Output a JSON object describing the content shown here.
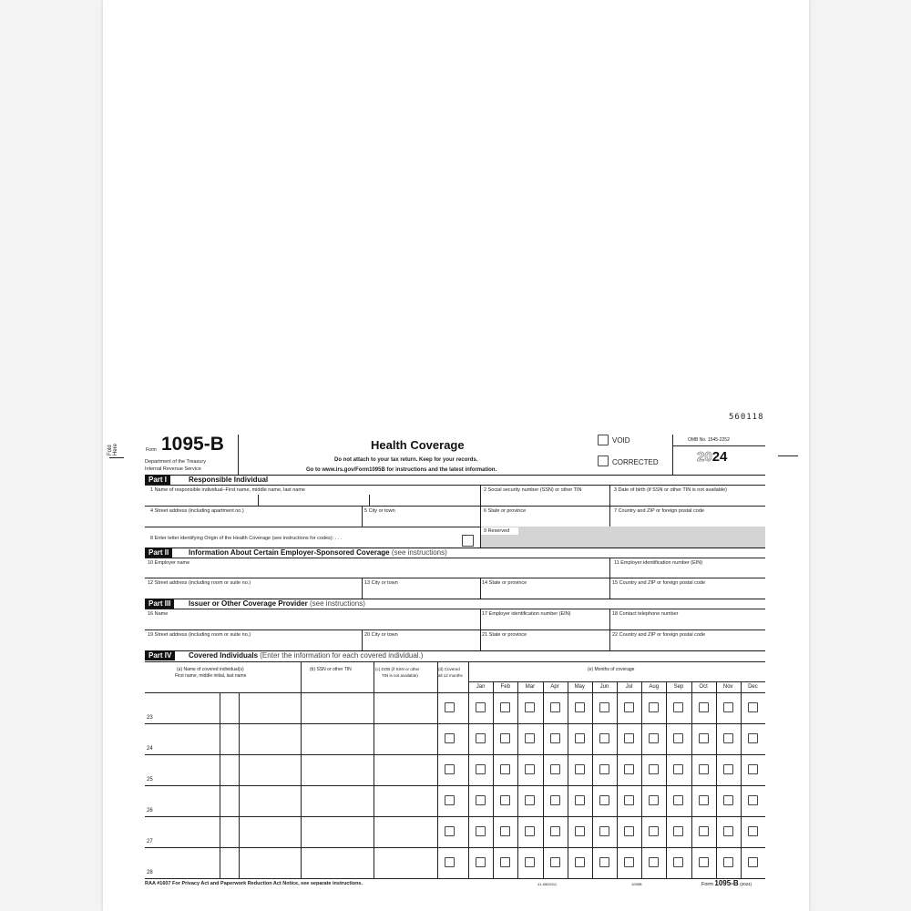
{
  "form": {
    "code": "560118",
    "fold": "Fold Here",
    "form_label": "Form",
    "form_number": "1095-B",
    "dept1": "Department of the Treasury",
    "dept2": "Internal Revenue Service",
    "title": "Health Coverage",
    "sub1": "Do not attach to your tax return. Keep for your records.",
    "sub2": "Go to www.irs.gov/Form1095B for instructions and the latest information.",
    "void": "VOID",
    "corrected": "CORRECTED",
    "omb": "OMB No. 1545-2252",
    "year_light": "20",
    "year_bold": "24"
  },
  "part1": {
    "label": "Part I",
    "title": "Responsible Individual",
    "f1": "1   Name of responsible individual–First name, middle name, last name",
    "f2": "2   Social security number (SSN) or other TIN",
    "f3": "3   Date of birth (if SSN or other TIN is not available)",
    "f4": "4   Street address (including apartment no.)",
    "f5": "5   City or town",
    "f6": "6   State or province",
    "f7": "7   Country and ZIP or foreign postal code",
    "f8": "8   Enter letter identifying Origin of the Health Coverage (see instructions for codes):   .   .   .",
    "f9": "9   Reserved"
  },
  "part2": {
    "label": "Part II",
    "title": "Information About Certain Employer-Sponsored Coverage",
    "note": "(see instructions)",
    "f10": "10   Employer name",
    "f11": "11   Employer identification number (EIN)",
    "f12": "12  Street address (including room or suite no.)",
    "f13": "13   City or town",
    "f14": "14   State or province",
    "f15": "15   Country and ZIP or foreign postal code"
  },
  "part3": {
    "label": "Part III",
    "title": "Issuer or Other Coverage Provider",
    "note": "(see instructions)",
    "f16": "16   Name",
    "f17": "17   Employer identification number (EIN)",
    "f18": "18   Contact telephone number",
    "f19": "19  Street address (including room or suite no.)",
    "f20": "20   City or town",
    "f21": "21   State or province",
    "f22": "22   Country and ZIP or foreign postal code"
  },
  "part4": {
    "label": "Part IV",
    "title": "Covered Individuals",
    "note": "(Enter the information for each covered individual.)",
    "col_a1": "(a) Name of covered individual(s)",
    "col_a2": "First name, middle initial, last name",
    "col_b": "(b) SSN or other TIN",
    "col_c1": "(c) DOB (if SSN or other",
    "col_c2": "TIN is not available)",
    "col_d1": "(d) Covered",
    "col_d2": "all 12 months",
    "col_e": "(e) Months of coverage",
    "months": [
      "Jan",
      "Feb",
      "Mar",
      "Apr",
      "May",
      "Jun",
      "Jul",
      "Aug",
      "Sep",
      "Oct",
      "Nov",
      "Dec"
    ],
    "rows": [
      "23",
      "24",
      "25",
      "26",
      "27",
      "28"
    ]
  },
  "footer": {
    "left": "RAA #1607  For Privacy Act and Paperwork Reduction Act Notice, see separate instructions.",
    "cat": "41-0852411",
    "code": "1095B",
    "form_prefix": "Form",
    "form_num": "1095-B",
    "year": "(2024)"
  }
}
